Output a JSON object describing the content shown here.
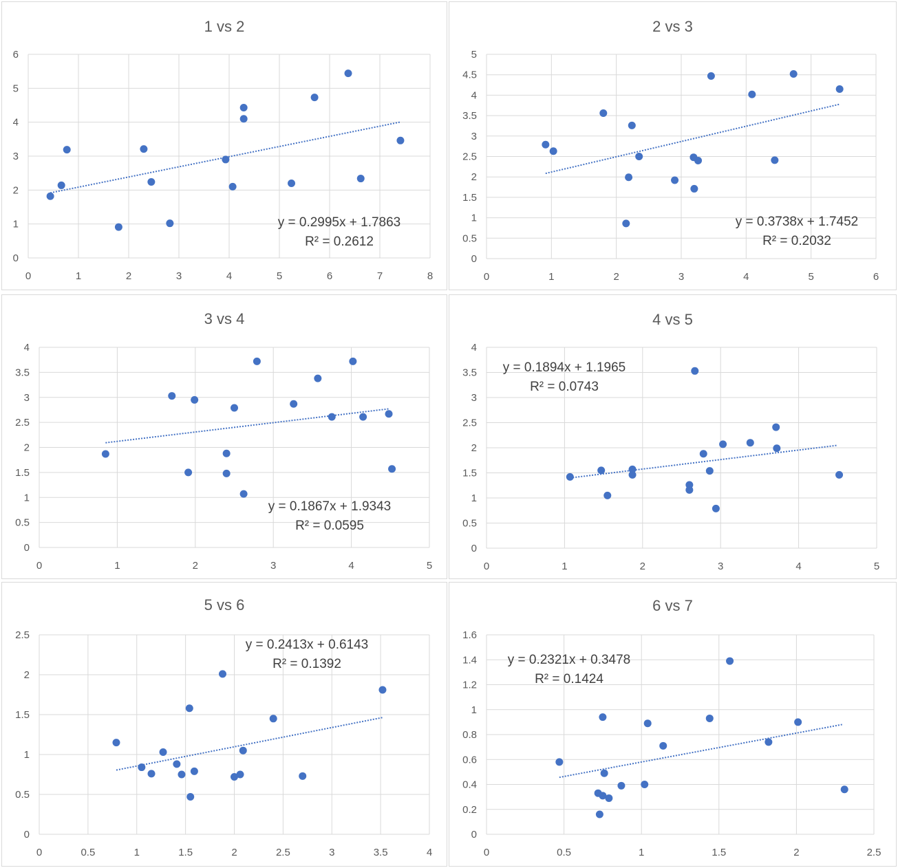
{
  "colors": {
    "point": "#4472C4",
    "trend": "#4472C4",
    "grid": "#d9d9d9",
    "text": "#595959"
  },
  "chart_data": [
    {
      "type": "scatter",
      "title": "1 vs 2",
      "xlim": [
        0,
        8
      ],
      "ylim": [
        0,
        6
      ],
      "xticks": [
        0,
        1,
        2,
        3,
        4,
        5,
        6,
        7,
        8
      ],
      "yticks": [
        0,
        1,
        2,
        3,
        4,
        5,
        6
      ],
      "grid": true,
      "points": [
        [
          0.44,
          1.82
        ],
        [
          0.66,
          2.14
        ],
        [
          0.77,
          3.19
        ],
        [
          1.8,
          0.91
        ],
        [
          2.3,
          3.21
        ],
        [
          2.45,
          2.24
        ],
        [
          2.82,
          1.02
        ],
        [
          3.93,
          2.9
        ],
        [
          4.07,
          2.1
        ],
        [
          4.29,
          4.43
        ],
        [
          4.29,
          4.1
        ],
        [
          5.24,
          2.2
        ],
        [
          5.7,
          4.73
        ],
        [
          6.37,
          5.44
        ],
        [
          6.62,
          2.34
        ],
        [
          7.41,
          3.46
        ]
      ],
      "trendline": {
        "slope": 0.2995,
        "intercept": 1.7863,
        "x_range": [
          0.44,
          7.41
        ],
        "equation": "y = 0.2995x + 1.7863",
        "r2": "R² = 0.2612"
      }
    },
    {
      "type": "scatter",
      "title": "2 vs 3",
      "xlim": [
        0,
        6
      ],
      "ylim": [
        0,
        5
      ],
      "xticks": [
        0,
        1,
        2,
        3,
        4,
        5,
        6
      ],
      "yticks": [
        0,
        0.5,
        1,
        1.5,
        2,
        2.5,
        3,
        3.5,
        4,
        4.5,
        5
      ],
      "grid": true,
      "points": [
        [
          0.91,
          2.79
        ],
        [
          1.03,
          2.63
        ],
        [
          1.8,
          3.56
        ],
        [
          2.15,
          0.86
        ],
        [
          2.19,
          1.99
        ],
        [
          2.24,
          3.26
        ],
        [
          2.35,
          2.5
        ],
        [
          2.9,
          1.92
        ],
        [
          3.19,
          2.48
        ],
        [
          3.2,
          1.71
        ],
        [
          3.26,
          2.4
        ],
        [
          3.46,
          4.47
        ],
        [
          4.09,
          4.02
        ],
        [
          4.44,
          2.41
        ],
        [
          4.73,
          4.52
        ],
        [
          5.44,
          4.15
        ]
      ],
      "trendline": {
        "slope": 0.3738,
        "intercept": 1.7452,
        "x_range": [
          0.91,
          5.44
        ],
        "equation": "y = 0.3738x + 1.7452",
        "r2": "R² = 0.2032"
      }
    },
    {
      "type": "scatter",
      "title": "3 vs 4",
      "xlim": [
        0,
        5
      ],
      "ylim": [
        0,
        4
      ],
      "xticks": [
        0,
        1,
        2,
        3,
        4,
        5
      ],
      "yticks": [
        0,
        0.5,
        1,
        1.5,
        2,
        2.5,
        3,
        3.5,
        4
      ],
      "grid": true,
      "points": [
        [
          0.85,
          1.87
        ],
        [
          1.7,
          3.03
        ],
        [
          1.91,
          1.5
        ],
        [
          1.99,
          2.95
        ],
        [
          2.4,
          1.88
        ],
        [
          2.4,
          1.48
        ],
        [
          2.5,
          2.79
        ],
        [
          2.62,
          1.07
        ],
        [
          2.79,
          3.72
        ],
        [
          3.26,
          2.87
        ],
        [
          3.57,
          3.38
        ],
        [
          3.75,
          2.61
        ],
        [
          4.02,
          3.72
        ],
        [
          4.15,
          2.61
        ],
        [
          4.48,
          2.67
        ],
        [
          4.52,
          1.57
        ]
      ],
      "trendline": {
        "slope": 0.1867,
        "intercept": 1.9343,
        "x_range": [
          0.85,
          4.48
        ],
        "equation": "y = 0.1867x + 1.9343",
        "r2": "R² = 0.0595"
      }
    },
    {
      "type": "scatter",
      "title": "4 vs 5",
      "xlim": [
        0,
        5
      ],
      "ylim": [
        0,
        4
      ],
      "xticks": [
        0,
        1,
        2,
        3,
        4,
        5
      ],
      "yticks": [
        0,
        0.5,
        1,
        1.5,
        2,
        2.5,
        3,
        3.5,
        4
      ],
      "grid": true,
      "points": [
        [
          1.07,
          1.42
        ],
        [
          1.47,
          1.55
        ],
        [
          1.55,
          1.05
        ],
        [
          1.87,
          1.57
        ],
        [
          1.87,
          1.46
        ],
        [
          2.6,
          1.26
        ],
        [
          2.6,
          1.16
        ],
        [
          2.67,
          3.53
        ],
        [
          2.78,
          1.88
        ],
        [
          2.86,
          1.54
        ],
        [
          2.94,
          0.79
        ],
        [
          3.03,
          2.07
        ],
        [
          3.38,
          2.1
        ],
        [
          3.71,
          2.41
        ],
        [
          3.72,
          1.99
        ],
        [
          4.52,
          1.46
        ]
      ],
      "trendline": {
        "slope": 0.1894,
        "intercept": 1.1965,
        "x_range": [
          1.07,
          4.5
        ],
        "equation": "y = 0.1894x + 1.1965",
        "r2": "R² = 0.0743"
      }
    },
    {
      "type": "scatter",
      "title": "5 vs 6",
      "xlim": [
        0,
        4
      ],
      "ylim": [
        0,
        2.5
      ],
      "xticks": [
        0,
        0.5,
        1,
        1.5,
        2,
        2.5,
        3,
        3.5,
        4
      ],
      "yticks": [
        0,
        0.5,
        1,
        1.5,
        2,
        2.5
      ],
      "grid": true,
      "points": [
        [
          0.79,
          1.15
        ],
        [
          1.05,
          0.84
        ],
        [
          1.15,
          0.76
        ],
        [
          1.27,
          1.03
        ],
        [
          1.41,
          0.88
        ],
        [
          1.46,
          0.75
        ],
        [
          1.54,
          1.58
        ],
        [
          1.55,
          0.47
        ],
        [
          1.59,
          0.79
        ],
        [
          1.88,
          2.01
        ],
        [
          2.0,
          0.72
        ],
        [
          2.06,
          0.75
        ],
        [
          2.09,
          1.05
        ],
        [
          2.4,
          1.45
        ],
        [
          2.7,
          0.73
        ],
        [
          3.52,
          1.81
        ]
      ],
      "trendline": {
        "slope": 0.2413,
        "intercept": 0.6143,
        "x_range": [
          0.79,
          3.52
        ],
        "equation": "y = 0.2413x + 0.6143",
        "r2": "R² = 0.1392"
      }
    },
    {
      "type": "scatter",
      "title": "6 vs 7",
      "xlim": [
        0,
        2.5
      ],
      "ylim": [
        0,
        1.6
      ],
      "xticks": [
        0,
        0.5,
        1,
        1.5,
        2,
        2.5
      ],
      "yticks": [
        0,
        0.2,
        0.4,
        0.6,
        0.8,
        1,
        1.2,
        1.4,
        1.6
      ],
      "grid": true,
      "points": [
        [
          0.47,
          0.58
        ],
        [
          0.72,
          0.33
        ],
        [
          0.73,
          0.16
        ],
        [
          0.75,
          0.94
        ],
        [
          0.75,
          0.31
        ],
        [
          0.76,
          0.49
        ],
        [
          0.79,
          0.29
        ],
        [
          0.87,
          0.39
        ],
        [
          1.02,
          0.4
        ],
        [
          1.04,
          0.89
        ],
        [
          1.14,
          0.71
        ],
        [
          1.44,
          0.93
        ],
        [
          1.57,
          1.39
        ],
        [
          1.82,
          0.74
        ],
        [
          2.01,
          0.9
        ],
        [
          2.31,
          0.36
        ]
      ],
      "trendline": {
        "slope": 0.2321,
        "intercept": 0.3478,
        "x_range": [
          0.47,
          2.3
        ],
        "equation": "y = 0.2321x + 0.3478",
        "r2": "R² = 0.1424"
      }
    }
  ]
}
